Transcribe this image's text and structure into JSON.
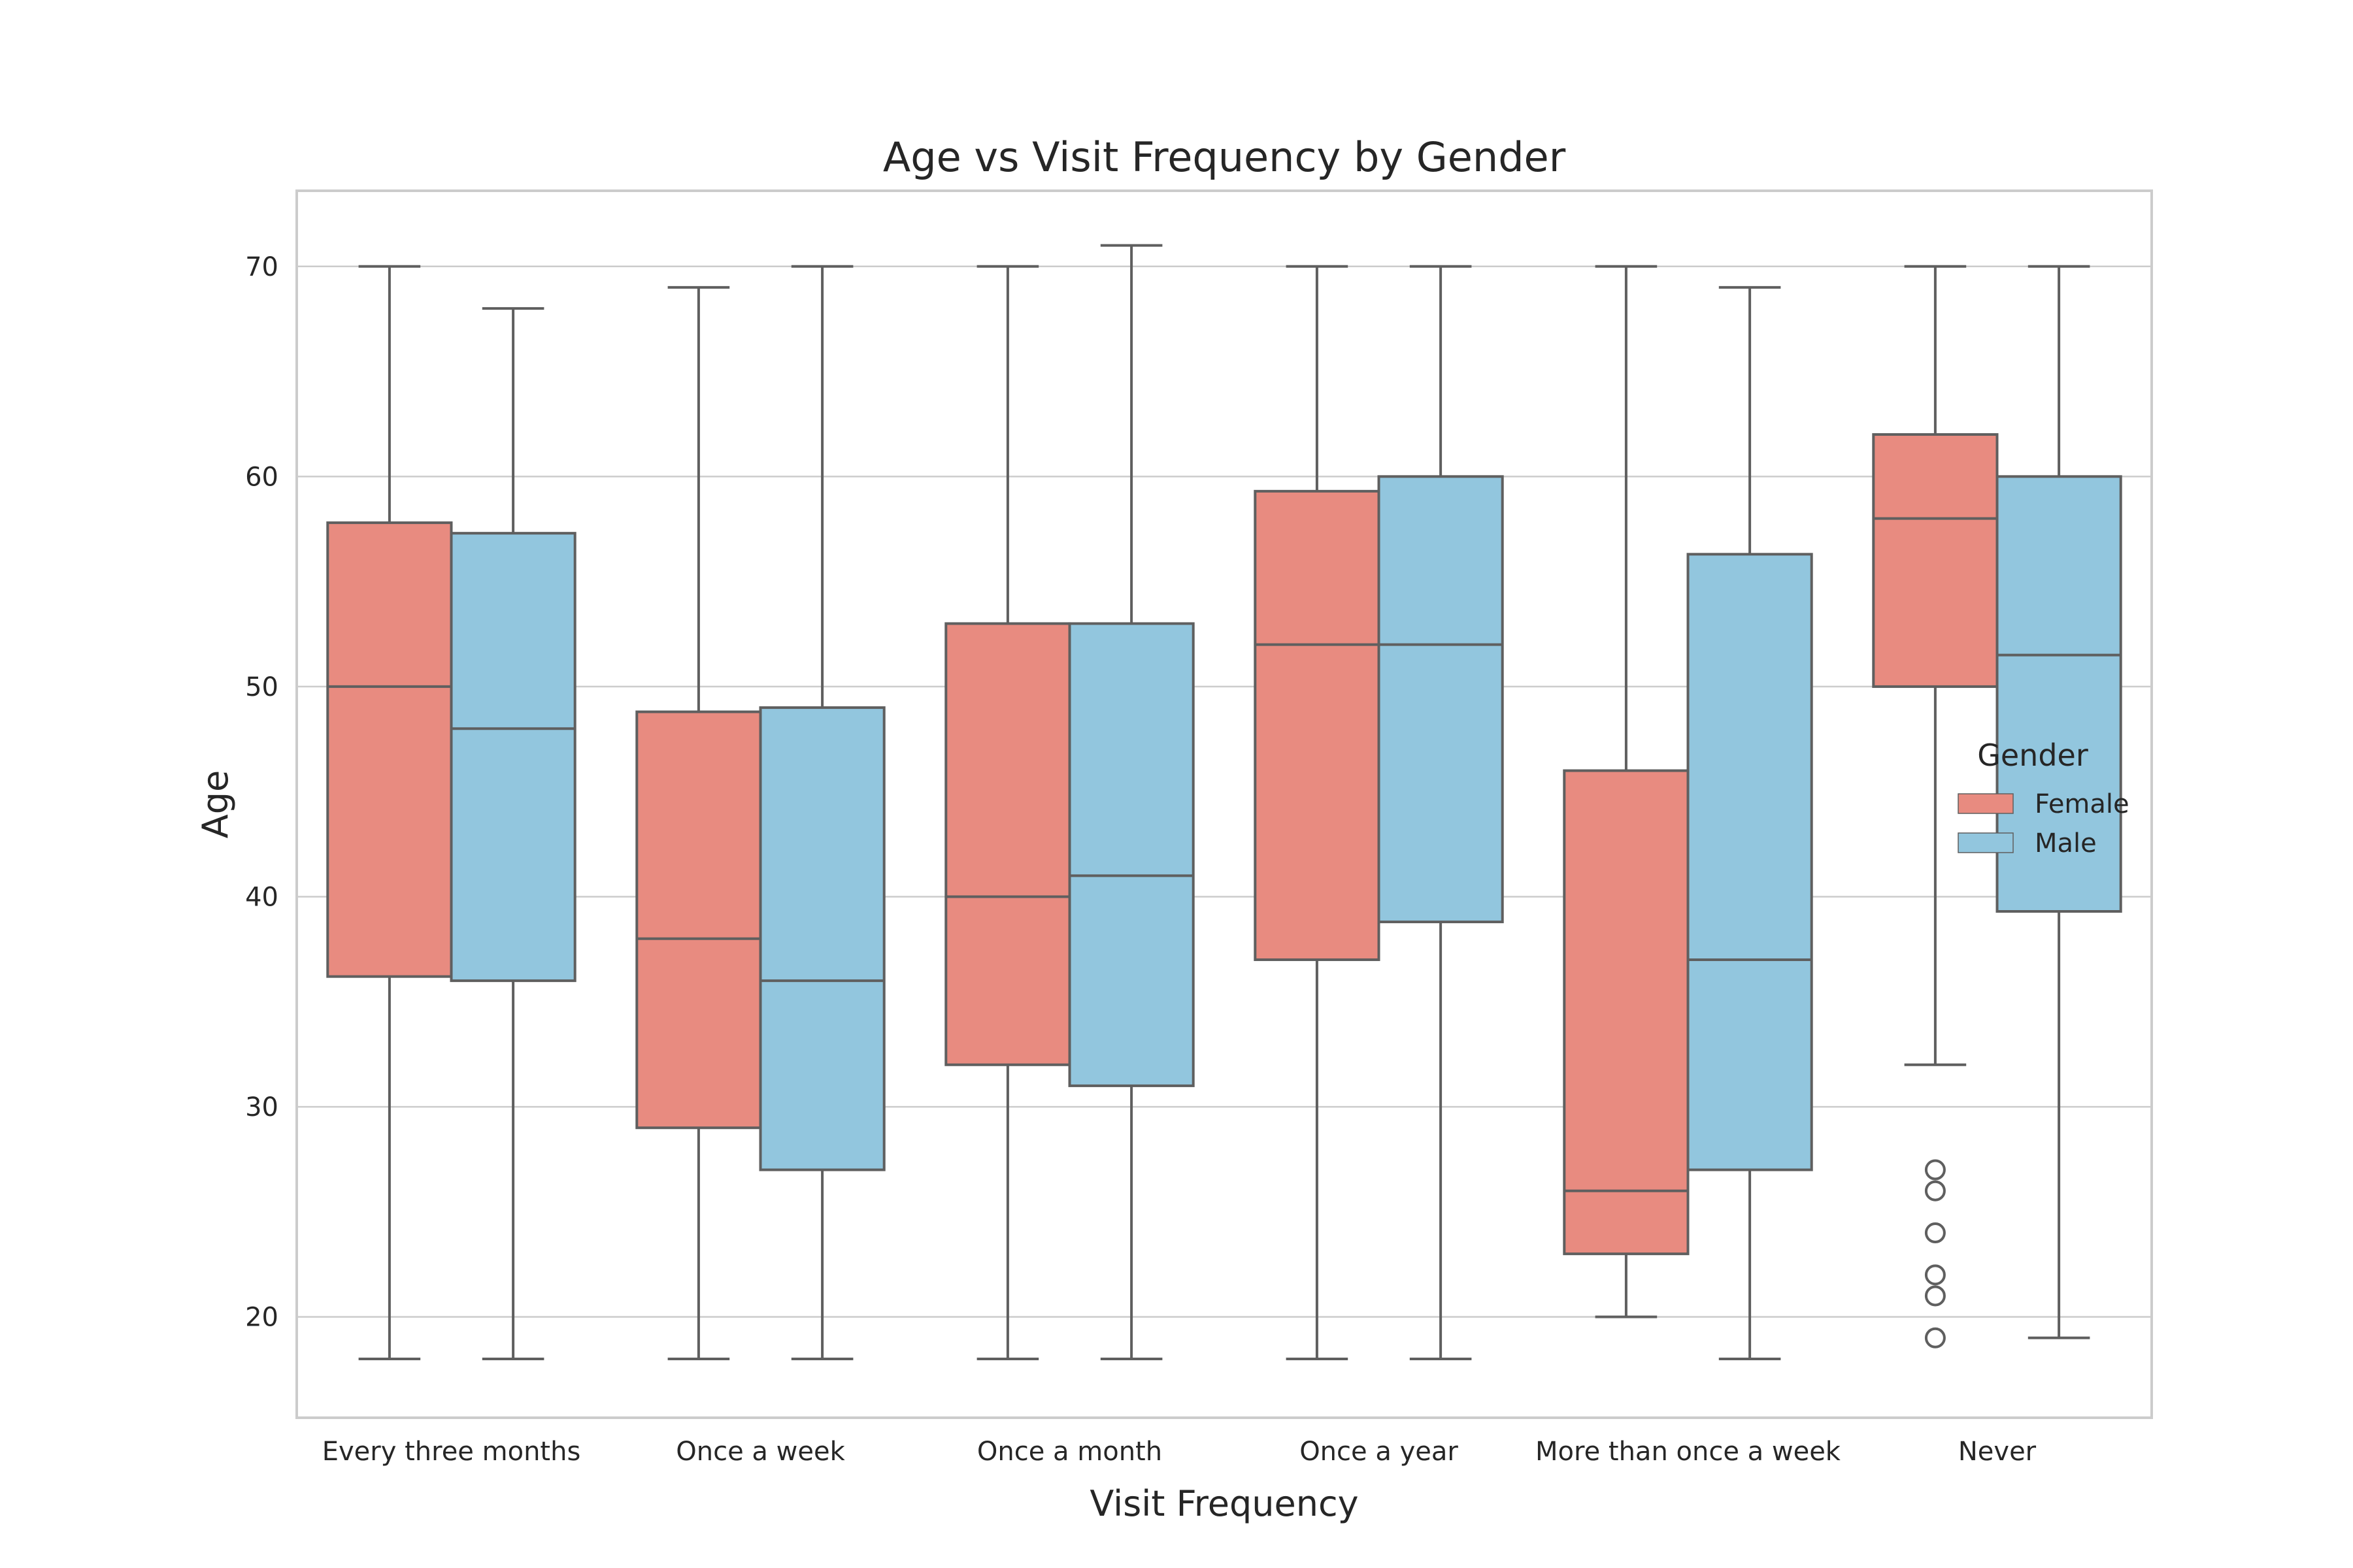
{
  "chart_data": {
    "type": "box",
    "title": "Age vs Visit Frequency by Gender",
    "xlabel": "Visit Frequency",
    "ylabel": "Age",
    "ylim": [
      15.2,
      73.6
    ],
    "yticks": [
      20,
      30,
      40,
      50,
      60,
      70
    ],
    "grid": "horizontal",
    "legend": {
      "title": "Gender",
      "placement": "center-right"
    },
    "categories": [
      "Every three months",
      "Once a week",
      "Once a month",
      "Once a year",
      "More than once a week",
      "Never"
    ],
    "series": [
      {
        "name": "Female",
        "color": "#e88b80",
        "boxes": [
          {
            "whislo": 18,
            "q1": 36.2,
            "med": 50,
            "q3": 57.8,
            "whishi": 70,
            "fliers": []
          },
          {
            "whislo": 18,
            "q1": 29,
            "med": 38,
            "q3": 48.8,
            "whishi": 69,
            "fliers": []
          },
          {
            "whislo": 18,
            "q1": 32,
            "med": 40,
            "q3": 53,
            "whishi": 70,
            "fliers": []
          },
          {
            "whislo": 18,
            "q1": 37,
            "med": 52,
            "q3": 59.3,
            "whishi": 70,
            "fliers": []
          },
          {
            "whislo": 20,
            "q1": 23,
            "med": 26,
            "q3": 46,
            "whishi": 70,
            "fliers": []
          },
          {
            "whislo": 32,
            "q1": 50,
            "med": 58,
            "q3": 62,
            "whishi": 70,
            "fliers": [
              19,
              21,
              22,
              24,
              26,
              27
            ]
          }
        ]
      },
      {
        "name": "Male",
        "color": "#92c6de",
        "boxes": [
          {
            "whislo": 18,
            "q1": 36,
            "med": 48,
            "q3": 57.3,
            "whishi": 68,
            "fliers": []
          },
          {
            "whislo": 18,
            "q1": 27,
            "med": 36,
            "q3": 49,
            "whishi": 70,
            "fliers": []
          },
          {
            "whislo": 18,
            "q1": 31,
            "med": 41,
            "q3": 53,
            "whishi": 71,
            "fliers": []
          },
          {
            "whislo": 18,
            "q1": 38.8,
            "med": 52,
            "q3": 60,
            "whishi": 70,
            "fliers": []
          },
          {
            "whislo": 18,
            "q1": 27,
            "med": 37,
            "q3": 56.3,
            "whishi": 69,
            "fliers": []
          },
          {
            "whislo": 19,
            "q1": 39.3,
            "med": 51.5,
            "q3": 60,
            "whishi": 70,
            "fliers": []
          }
        ]
      }
    ],
    "colors": {
      "edge": "#5f5f5f",
      "grid": "#cccccc",
      "frame": "#cccccc"
    }
  }
}
